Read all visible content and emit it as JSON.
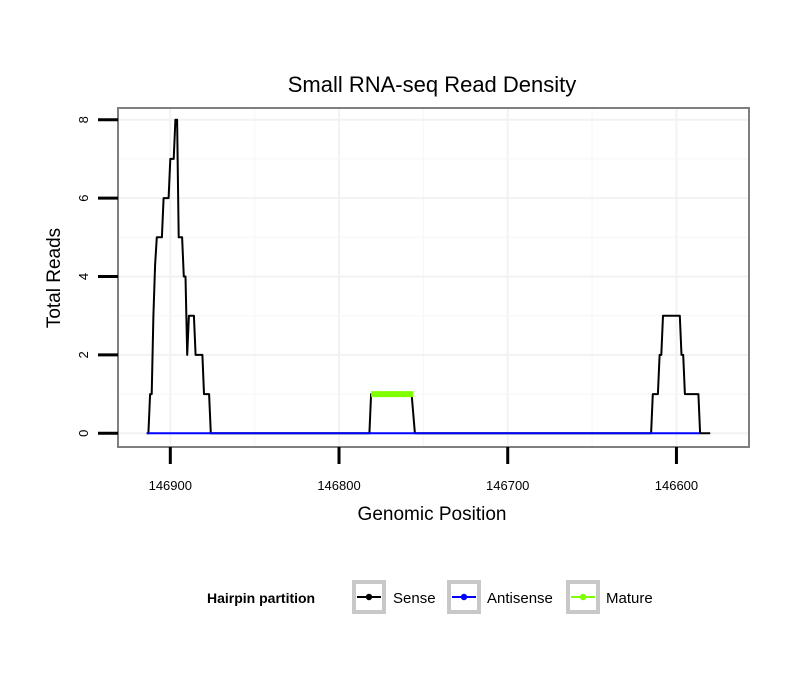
{
  "chart_data": {
    "type": "line",
    "title": "Small RNA-seq Read Density",
    "xlabel": "Genomic Position",
    "ylabel": "Total Reads",
    "x_reversed": true,
    "xlim": [
      146931,
      146557
    ],
    "ylim": [
      -0.35,
      8.3
    ],
    "x_ticks": [
      146900,
      146800,
      146700,
      146600
    ],
    "x_tick_labels": [
      "146900",
      "146800",
      "146700",
      "146600"
    ],
    "y_ticks": [
      0,
      2,
      4,
      6,
      8
    ],
    "y_tick_labels": [
      "0",
      "2",
      "4",
      "6",
      "8"
    ],
    "grid": true,
    "legend": {
      "title": "Hairpin partition",
      "position": "bottom",
      "entries": [
        {
          "name": "Sense",
          "color": "#000000"
        },
        {
          "name": "Antisense",
          "color": "#0000ff"
        },
        {
          "name": "Mature",
          "color": "#7fff00"
        }
      ]
    },
    "series": [
      {
        "name": "Sense",
        "color": "#000000",
        "points": [
          [
            146914,
            0
          ],
          [
            146913,
            0
          ],
          [
            146912,
            1
          ],
          [
            146911,
            1
          ],
          [
            146910,
            3
          ],
          [
            146909,
            4.3
          ],
          [
            146908,
            5
          ],
          [
            146907,
            5
          ],
          [
            146906,
            5
          ],
          [
            146905,
            5
          ],
          [
            146904,
            6
          ],
          [
            146903,
            6
          ],
          [
            146902,
            6
          ],
          [
            146901,
            6
          ],
          [
            146900,
            7
          ],
          [
            146899,
            7
          ],
          [
            146898,
            7
          ],
          [
            146897,
            8
          ],
          [
            146896,
            8
          ],
          [
            146895,
            5
          ],
          [
            146894,
            5
          ],
          [
            146893,
            5
          ],
          [
            146892,
            4
          ],
          [
            146891,
            4
          ],
          [
            146890,
            2
          ],
          [
            146889,
            3
          ],
          [
            146888,
            3
          ],
          [
            146887,
            3
          ],
          [
            146886,
            3
          ],
          [
            146885,
            2
          ],
          [
            146884,
            2
          ],
          [
            146883,
            2
          ],
          [
            146882,
            2
          ],
          [
            146881,
            2
          ],
          [
            146880,
            1
          ],
          [
            146879,
            1
          ],
          [
            146878,
            1
          ],
          [
            146877,
            1
          ],
          [
            146876,
            0
          ],
          [
            146782,
            0
          ],
          [
            146781,
            1
          ],
          [
            146780,
            1
          ],
          [
            146757,
            1
          ],
          [
            146755,
            0
          ],
          [
            146615,
            0
          ],
          [
            146614,
            1
          ],
          [
            146613,
            1
          ],
          [
            146611,
            1
          ],
          [
            146610,
            2
          ],
          [
            146609,
            2
          ],
          [
            146608,
            3
          ],
          [
            146607,
            3
          ],
          [
            146598,
            3
          ],
          [
            146597,
            2
          ],
          [
            146596,
            2
          ],
          [
            146595,
            1
          ],
          [
            146594,
            1
          ],
          [
            146593,
            1
          ],
          [
            146592,
            1
          ],
          [
            146591,
            1
          ],
          [
            146590,
            1
          ],
          [
            146589,
            1
          ],
          [
            146588,
            1
          ],
          [
            146587,
            1
          ],
          [
            146586,
            0
          ],
          [
            146580,
            0
          ]
        ]
      },
      {
        "name": "Antisense",
        "color": "#0000ff",
        "points": [
          [
            146914,
            0
          ],
          [
            146876,
            0
          ],
          [
            146782,
            0
          ],
          [
            146755,
            0
          ],
          [
            146615,
            0
          ],
          [
            146586,
            0
          ]
        ]
      },
      {
        "name": "Mature",
        "color": "#7fff00",
        "points": [
          [
            146781,
            1
          ],
          [
            146756,
            1
          ]
        ]
      }
    ]
  }
}
